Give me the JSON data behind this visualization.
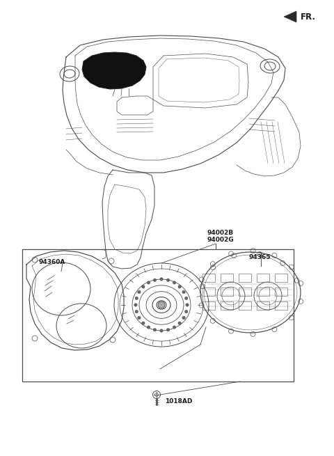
{
  "bg_color": "#ffffff",
  "line_color": "#4a4a4a",
  "figsize": [
    4.8,
    6.55
  ],
  "dpi": 100,
  "labels": {
    "FR": "FR.",
    "94002B": "94002B",
    "94002G": "94002G",
    "94365": "94365",
    "94360A": "94360A",
    "1018AD": "1018AD"
  },
  "label_fontsize": 6.5,
  "bold_fontsize": 7.0
}
